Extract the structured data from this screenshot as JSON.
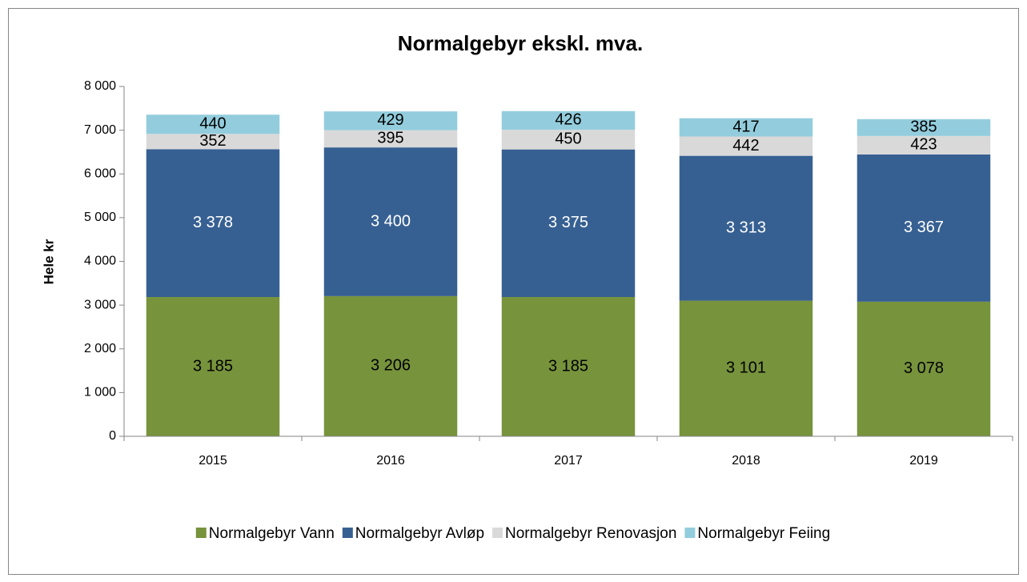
{
  "chart_data": {
    "type": "bar",
    "stacked": true,
    "title": "Normalgebyr ekskl. mva.",
    "y_label": "Hele kr",
    "categories": [
      "2015",
      "2016",
      "2017",
      "2018",
      "2019"
    ],
    "series": [
      {
        "name": "Normalgebyr Vann",
        "color": "#77933c",
        "label_color": "#000000",
        "values": [
          3185,
          3206,
          3185,
          3101,
          3078
        ],
        "value_labels": [
          "3 185",
          "3 206",
          "3 185",
          "3 101",
          "3 078"
        ]
      },
      {
        "name": "Normalgebyr Avløp",
        "color": "#376092",
        "label_color": "#ffffff",
        "values": [
          3378,
          3400,
          3375,
          3313,
          3367
        ],
        "value_labels": [
          "3 378",
          "3 400",
          "3 375",
          "3 313",
          "3 367"
        ]
      },
      {
        "name": "Normalgebyr Renovasjon",
        "color": "#d9d9d9",
        "label_color": "#000000",
        "values": [
          352,
          395,
          450,
          442,
          423
        ]
      },
      {
        "name": "Normalgebyr Feiing",
        "color": "#93cddd",
        "label_color": "#000000",
        "values": [
          440,
          429,
          426,
          417,
          385
        ]
      }
    ],
    "ylim": [
      0,
      8000
    ],
    "yticks": [
      0,
      {
        "value": 1000,
        "label": "1 000"
      },
      {
        "value": 2000,
        "label": "2 000"
      },
      {
        "value": 3000,
        "label": "3 000"
      },
      {
        "value": 4000,
        "label": "4 000"
      },
      {
        "value": 5000,
        "label": "5 000"
      },
      {
        "value": 6000,
        "label": "6 000"
      },
      {
        "value": 7000,
        "label": "7 000"
      },
      {
        "value": 8000,
        "label": "8 000"
      }
    ],
    "grid": false,
    "legend": "bottom"
  }
}
